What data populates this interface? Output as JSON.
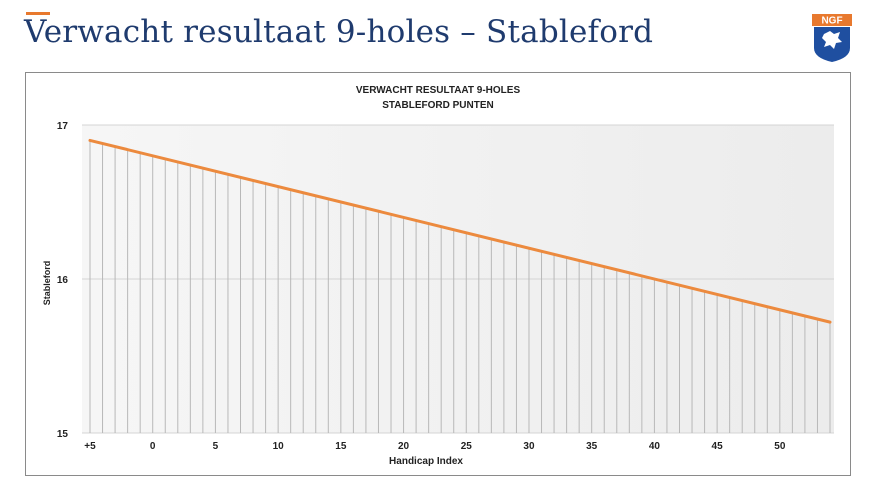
{
  "slide": {
    "title": "Verwacht resultaat 9-holes – Stableford",
    "logo_text": "NGF"
  },
  "colors": {
    "title": "#1f3b6e",
    "accent": "#e8792e",
    "line": "#ec8a3e",
    "logo_blue": "#1f4fa0",
    "logo_orange": "#e8792e"
  },
  "chart_data": {
    "type": "line",
    "title": "VERWACHT RESULTAAT 9-HOLES",
    "subtitle": "STABLEFORD PUNTEN",
    "xlabel": "Handicap Index",
    "ylabel": "Stableford",
    "x_range": [
      -5,
      54
    ],
    "ylim": [
      15,
      17
    ],
    "y_ticks": [
      15,
      16,
      17
    ],
    "x_ticks": [
      {
        "value": -5,
        "label": "+5"
      },
      {
        "value": 0,
        "label": "0"
      },
      {
        "value": 5,
        "label": "5"
      },
      {
        "value": 10,
        "label": "10"
      },
      {
        "value": 15,
        "label": "15"
      },
      {
        "value": 20,
        "label": "20"
      },
      {
        "value": 25,
        "label": "25"
      },
      {
        "value": 30,
        "label": "30"
      },
      {
        "value": 35,
        "label": "35"
      },
      {
        "value": 40,
        "label": "40"
      },
      {
        "value": 45,
        "label": "45"
      },
      {
        "value": 50,
        "label": "50"
      }
    ],
    "drop_lines": true,
    "grid": true,
    "series": [
      {
        "x": [
          -5,
          54
        ],
        "y": [
          16.9,
          15.72
        ]
      }
    ]
  }
}
